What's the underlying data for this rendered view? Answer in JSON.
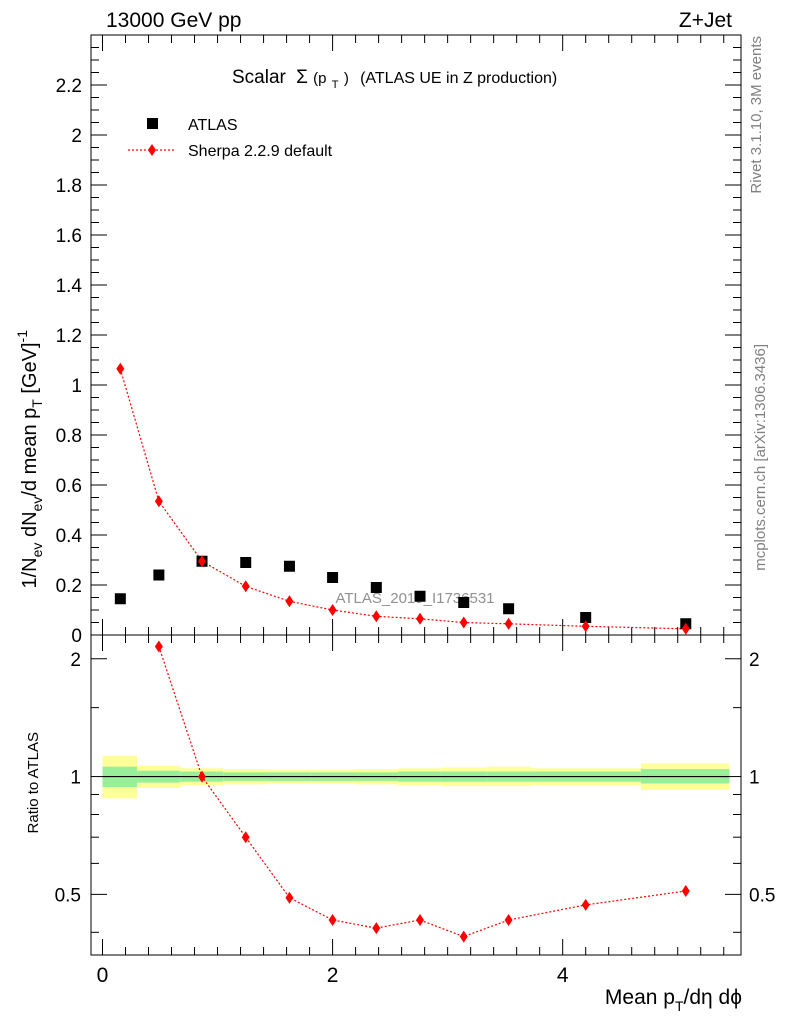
{
  "header": {
    "left": "13000 GeV pp",
    "right": "Z+Jet"
  },
  "side_labels": {
    "rivet": "Rivet 3.1.10,  3M events",
    "mcplots": "mcplots.cern.ch [arXiv:1306.3436]"
  },
  "watermark": "ATLAS_2019_I1736531",
  "chart_data": [
    {
      "type": "scatter",
      "title_main": "Scalar",
      "title_sigma": "Σ",
      "title_arg_open": "(p",
      "title_arg_sub": "T",
      "title_arg_close": ")",
      "title_rest": "(ATLAS UE in Z production)",
      "ylabel": {
        "p1": "1/N",
        "s1": "ev",
        "p2": " dN",
        "s2": "ev",
        "p3": "/d mean p",
        "s3": "T",
        "p4": " [GeV]",
        "sup": "-1"
      },
      "ylim": [
        0,
        2.4
      ],
      "xlim": [
        -0.1,
        5.55
      ],
      "y_ticks": [
        0,
        0.2,
        0.4,
        0.6,
        0.8,
        1,
        1.2,
        1.4,
        1.6,
        1.8,
        2,
        2.2
      ],
      "y_tick_labels": [
        "0",
        "0.2",
        "0.4",
        "0.6",
        "0.8",
        "1",
        "1.2",
        "1.4",
        "1.6",
        "1.8",
        "2",
        "2.2"
      ],
      "legend_placement": "top-left",
      "series": [
        {
          "name": "ATLAS",
          "marker": "square",
          "color": "#000000",
          "x": [
            0.155,
            0.49,
            0.865,
            1.245,
            1.625,
            2.0,
            2.38,
            2.76,
            3.14,
            3.53,
            4.2,
            5.07
          ],
          "y": [
            0.145,
            0.24,
            0.295,
            0.29,
            0.275,
            0.23,
            0.19,
            0.155,
            0.13,
            0.105,
            0.07,
            0.045
          ]
        },
        {
          "name": "Sherpa 2.2.9 default",
          "marker": "diamond",
          "color": "#ff0000",
          "line": "dotted",
          "x": [
            0.155,
            0.49,
            0.865,
            1.245,
            1.625,
            2.0,
            2.38,
            2.76,
            3.14,
            3.53,
            4.2,
            5.07
          ],
          "y": [
            1.065,
            0.535,
            0.295,
            0.195,
            0.135,
            0.1,
            0.075,
            0.065,
            0.05,
            0.045,
            0.035,
            0.025
          ]
        }
      ]
    },
    {
      "type": "scatter",
      "ylabel": "Ratio to ATLAS",
      "xlabel": {
        "p1": "Mean p",
        "s1": "T",
        "p2": "/dη dϕ"
      },
      "ylim": [
        0.35,
        2.3
      ],
      "xlim": [
        -0.1,
        5.55
      ],
      "y_scale": "log",
      "y_ticks": [
        0.5,
        1,
        2
      ],
      "y_tick_labels": [
        "0.5",
        "1",
        "2"
      ],
      "x_ticks": [
        0,
        2,
        4
      ],
      "x_tick_labels": [
        "0",
        "2",
        "4"
      ],
      "reference_line": 1,
      "bands": [
        {
          "x0": 0.0,
          "x1": 0.3,
          "green": [
            0.94,
            1.06
          ],
          "yellow": [
            0.88,
            1.13
          ]
        },
        {
          "x0": 0.3,
          "x1": 0.68,
          "green": [
            0.965,
            1.035
          ],
          "yellow": [
            0.935,
            1.065
          ]
        },
        {
          "x0": 0.68,
          "x1": 1.05,
          "green": [
            0.97,
            1.03
          ],
          "yellow": [
            0.95,
            1.05
          ]
        },
        {
          "x0": 1.05,
          "x1": 1.43,
          "green": [
            0.975,
            1.025
          ],
          "yellow": [
            0.955,
            1.045
          ]
        },
        {
          "x0": 1.43,
          "x1": 1.81,
          "green": [
            0.975,
            1.025
          ],
          "yellow": [
            0.96,
            1.04
          ]
        },
        {
          "x0": 1.81,
          "x1": 2.19,
          "green": [
            0.975,
            1.025
          ],
          "yellow": [
            0.96,
            1.04
          ]
        },
        {
          "x0": 2.19,
          "x1": 2.57,
          "green": [
            0.975,
            1.025
          ],
          "yellow": [
            0.955,
            1.045
          ]
        },
        {
          "x0": 2.57,
          "x1": 2.95,
          "green": [
            0.97,
            1.03
          ],
          "yellow": [
            0.95,
            1.05
          ]
        },
        {
          "x0": 2.95,
          "x1": 3.34,
          "green": [
            0.97,
            1.03
          ],
          "yellow": [
            0.945,
            1.055
          ]
        },
        {
          "x0": 3.34,
          "x1": 3.72,
          "green": [
            0.97,
            1.03
          ],
          "yellow": [
            0.945,
            1.06
          ]
        },
        {
          "x0": 3.72,
          "x1": 4.68,
          "green": [
            0.97,
            1.03
          ],
          "yellow": [
            0.95,
            1.05
          ]
        },
        {
          "x0": 4.68,
          "x1": 5.45,
          "green": [
            0.96,
            1.045
          ],
          "yellow": [
            0.925,
            1.08
          ]
        }
      ],
      "series": [
        {
          "name": "Sherpa 2.2.9 default",
          "marker": "diamond",
          "color": "#ff0000",
          "line": "dotted",
          "x": [
            0.49,
            0.865,
            1.245,
            1.625,
            2.0,
            2.38,
            2.76,
            3.14,
            3.53,
            4.2,
            5.07
          ],
          "y": [
            2.15,
            1.0,
            0.7,
            0.49,
            0.43,
            0.41,
            0.43,
            0.39,
            0.43,
            0.47,
            0.51
          ]
        }
      ]
    }
  ]
}
